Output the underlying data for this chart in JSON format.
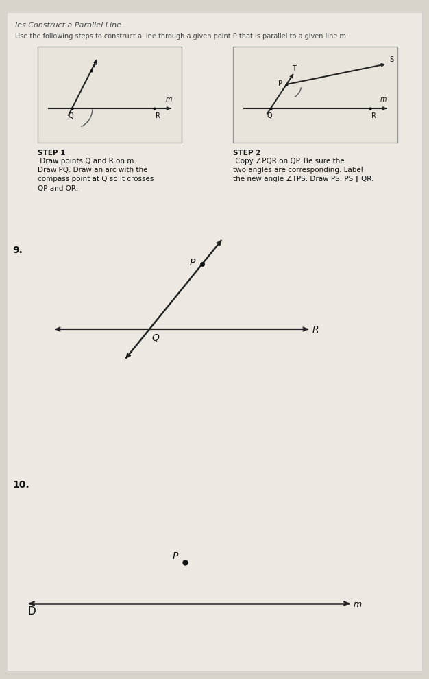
{
  "title": "les Construct a Parallel Line",
  "subtitle": "Use the following steps to construct a line through a given point P that is parallel to a given line m.",
  "bg_color": "#d8d4cc",
  "paper_color": "#ede9e2",
  "step1_bold": "STEP 1",
  "step1_text": "  Draw points Q and R on m.\nDraw PQ. Draw an arc with the\ncompass point at Q so it crosses\nQP and QR.",
  "step2_bold": "STEP 2",
  "step2_text": "  Copy ∠PQR on QP. Be sure the\ntwo angles are corresponding. Label\nthe new angle ∠TPS. Draw PS. PS ∥ QR.",
  "problem9_label": "9.",
  "problem10_label": "10.",
  "arrow_color": "#1a1a1a",
  "point_color": "#111111",
  "line_color": "#222222",
  "text_color": "#111111",
  "box_face": "#e8e4dc",
  "box_edge": "#999999"
}
